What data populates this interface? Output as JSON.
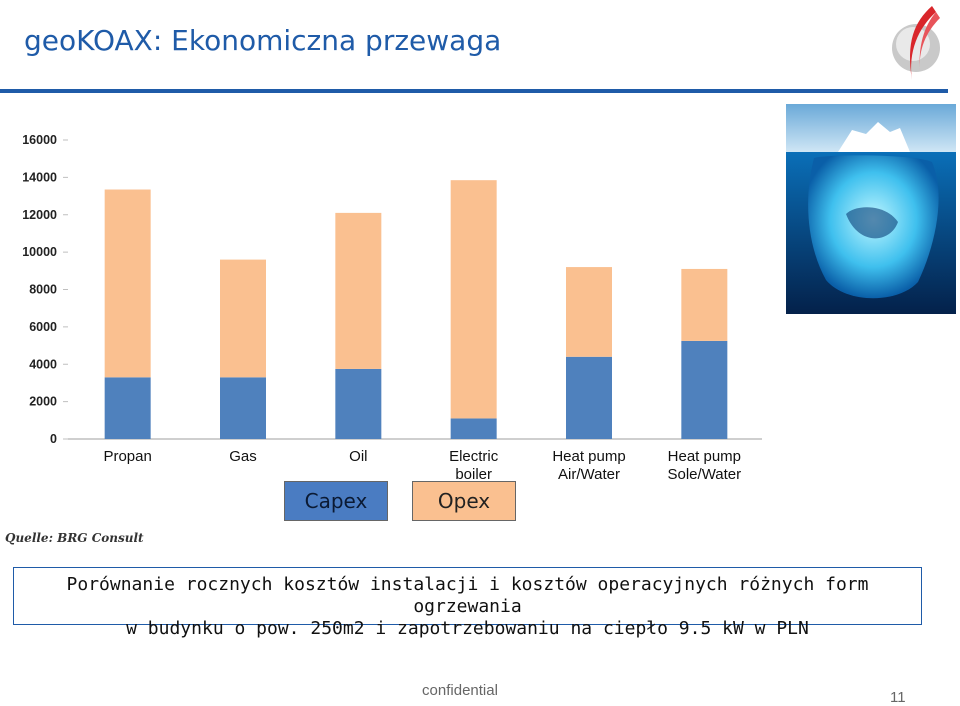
{
  "slide": {
    "title": "geoKOAX: Ekonomiczna przewaga",
    "source": "Quelle: BRG Consult",
    "description_line1": "Porównanie rocznych kosztów instalacji i kosztów operacyjnych różnych form ogrzewania",
    "description_line2": "w budynku o pow. 250m2 i zapotrzebowaniu na ciepło 9.5 kW w PLN",
    "footer": "confidential",
    "page_number": "11",
    "accent_color": "#1f5ba8"
  },
  "chart_data": {
    "type": "bar",
    "stacked": true,
    "categories": [
      "Propan",
      "Gas",
      "Oil",
      "Electric boiler",
      "Heat pump Air/Water",
      "Heat pump Sole/Water"
    ],
    "category_lines": [
      [
        "Propan"
      ],
      [
        "Gas"
      ],
      [
        "Oil"
      ],
      [
        "Electric",
        "boiler"
      ],
      [
        "Heat pump",
        "Air/Water"
      ],
      [
        "Heat pump",
        "Sole/Water"
      ]
    ],
    "series": [
      {
        "name": "Capex",
        "color": "#4f81bd",
        "values": [
          3300,
          3300,
          3750,
          1100,
          4400,
          5250
        ]
      },
      {
        "name": "Opex",
        "color": "#fac090",
        "values": [
          10050,
          6300,
          8350,
          12750,
          4800,
          3850
        ]
      }
    ],
    "yticks": [
      "0",
      "2000",
      "4000",
      "6000",
      "8000",
      "10000",
      "12000",
      "14000",
      "16000"
    ],
    "ylim": [
      0,
      16000
    ],
    "grid": false,
    "legend_position": "bottom"
  }
}
